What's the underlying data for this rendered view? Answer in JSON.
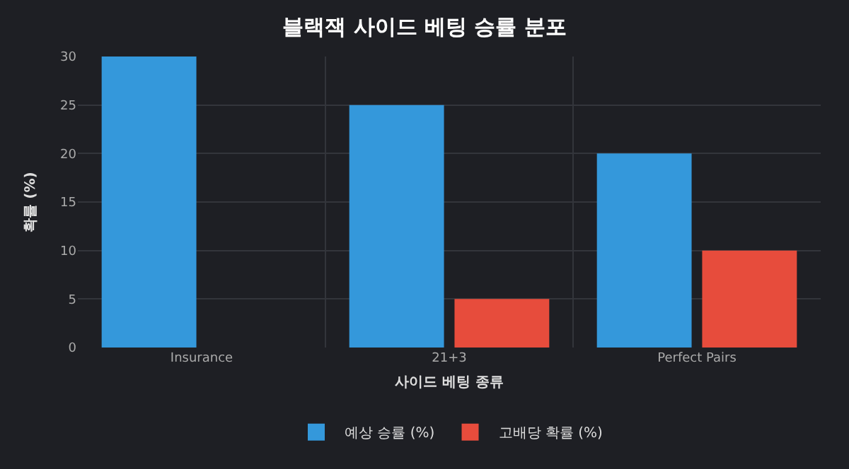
{
  "chart_data": {
    "type": "bar",
    "title": "블랙잭 사이드 베팅 승률 분포",
    "xlabel": "사이드 베팅 종류",
    "ylabel": "확률 (%)",
    "categories": [
      "Insurance",
      "21+3",
      "Perfect Pairs"
    ],
    "series": [
      {
        "name": "예상 승률 (%)",
        "color": "#3498db",
        "values": [
          30,
          25,
          20
        ]
      },
      {
        "name": "고배당 확률 (%)",
        "color": "#e74c3c",
        "values": [
          0,
          5,
          10
        ]
      }
    ],
    "ylim": [
      0,
      30
    ],
    "yticks": [
      0,
      5,
      10,
      15,
      20,
      25,
      30
    ],
    "grid": true,
    "legend": "bottom"
  }
}
